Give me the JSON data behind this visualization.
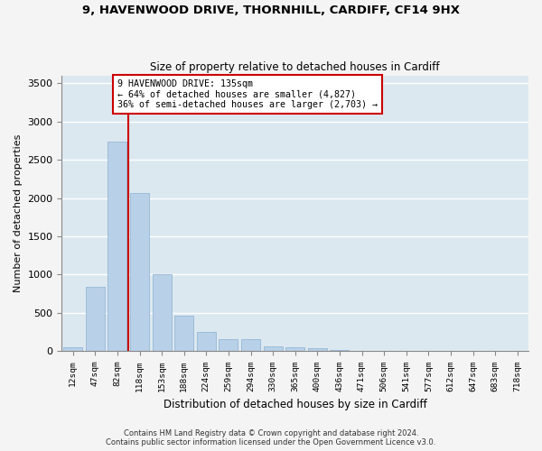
{
  "title_line1": "9, HAVENWOOD DRIVE, THORNHILL, CARDIFF, CF14 9HX",
  "title_line2": "Size of property relative to detached houses in Cardiff",
  "xlabel": "Distribution of detached houses by size in Cardiff",
  "ylabel": "Number of detached properties",
  "categories": [
    "12sqm",
    "47sqm",
    "82sqm",
    "118sqm",
    "153sqm",
    "188sqm",
    "224sqm",
    "259sqm",
    "294sqm",
    "330sqm",
    "365sqm",
    "400sqm",
    "436sqm",
    "471sqm",
    "506sqm",
    "541sqm",
    "577sqm",
    "612sqm",
    "647sqm",
    "683sqm",
    "718sqm"
  ],
  "values": [
    55,
    840,
    2730,
    2070,
    1010,
    460,
    250,
    155,
    155,
    65,
    55,
    35,
    20,
    10,
    5,
    5,
    5,
    2,
    2,
    2,
    2
  ],
  "bar_color": "#b8d0e8",
  "bar_edge_color": "#8ab0d0",
  "vline_color": "#cc0000",
  "vline_x_index": 3,
  "annotation_text_line1": "9 HAVENWOOD DRIVE: 135sqm",
  "annotation_text_line2": "← 64% of detached houses are smaller (4,827)",
  "annotation_text_line3": "36% of semi-detached houses are larger (2,703) →",
  "annotation_box_color": "#ffffff",
  "annotation_box_edge_color": "#cc0000",
  "ylim": [
    0,
    3600
  ],
  "yticks": [
    0,
    500,
    1000,
    1500,
    2000,
    2500,
    3000,
    3500
  ],
  "background_color": "#dce8f0",
  "fig_background_color": "#f4f4f4",
  "grid_color": "#ffffff",
  "footer_line1": "Contains HM Land Registry data © Crown copyright and database right 2024.",
  "footer_line2": "Contains public sector information licensed under the Open Government Licence v3.0."
}
